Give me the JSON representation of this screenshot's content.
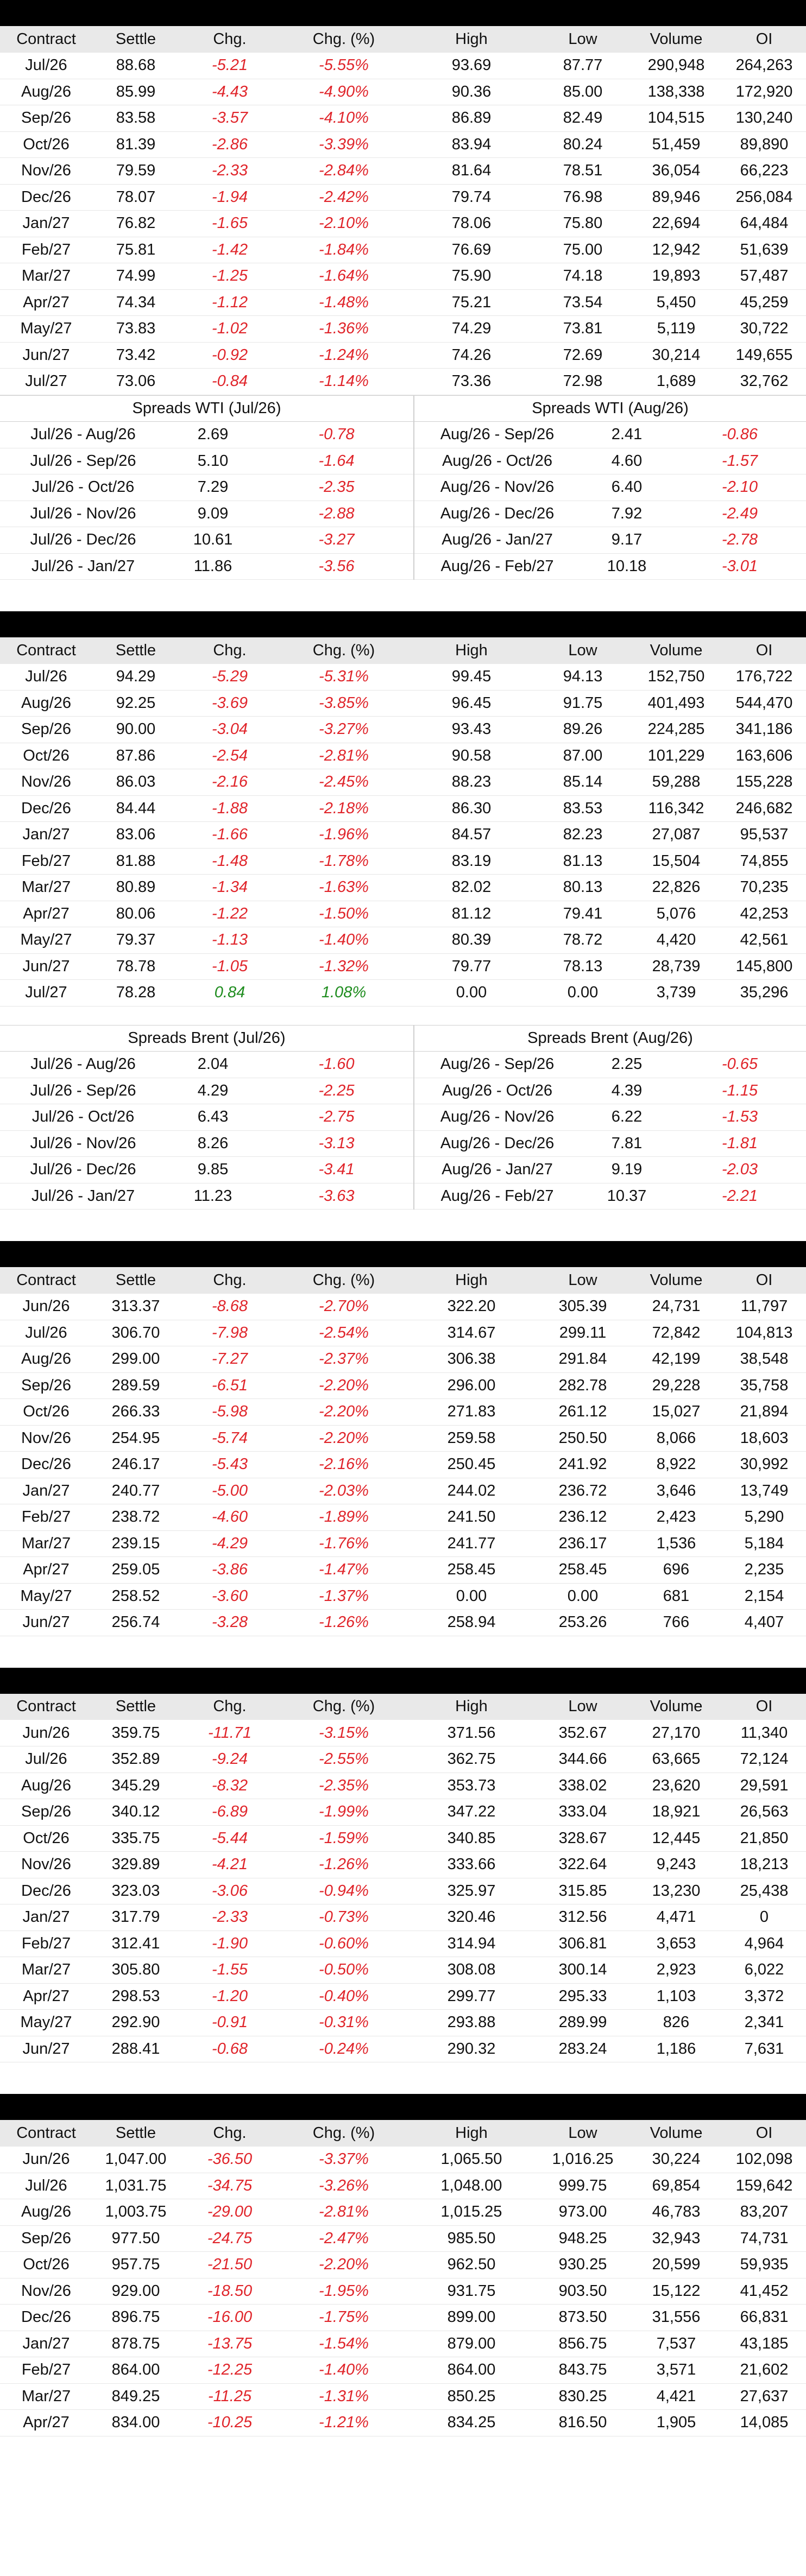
{
  "headers": [
    "Contract",
    "Settle",
    "Chg.",
    "Chg. (%)",
    "High",
    "Low",
    "Volume",
    "OI"
  ],
  "sections": [
    {
      "rows": [
        [
          "Jul/26",
          "88.68",
          "-5.21",
          "-5.55%",
          "93.69",
          "87.77",
          "290,948",
          "264,263"
        ],
        [
          "Aug/26",
          "85.99",
          "-4.43",
          "-4.90%",
          "90.36",
          "85.00",
          "138,338",
          "172,920"
        ],
        [
          "Sep/26",
          "83.58",
          "-3.57",
          "-4.10%",
          "86.89",
          "82.49",
          "104,515",
          "130,240"
        ],
        [
          "Oct/26",
          "81.39",
          "-2.86",
          "-3.39%",
          "83.94",
          "80.24",
          "51,459",
          "89,890"
        ],
        [
          "Nov/26",
          "79.59",
          "-2.33",
          "-2.84%",
          "81.64",
          "78.51",
          "36,054",
          "66,223"
        ],
        [
          "Dec/26",
          "78.07",
          "-1.94",
          "-2.42%",
          "79.74",
          "76.98",
          "89,946",
          "256,084"
        ],
        [
          "Jan/27",
          "76.82",
          "-1.65",
          "-2.10%",
          "78.06",
          "75.80",
          "22,694",
          "64,484"
        ],
        [
          "Feb/27",
          "75.81",
          "-1.42",
          "-1.84%",
          "76.69",
          "75.00",
          "12,942",
          "51,639"
        ],
        [
          "Mar/27",
          "74.99",
          "-1.25",
          "-1.64%",
          "75.90",
          "74.18",
          "19,893",
          "57,487"
        ],
        [
          "Apr/27",
          "74.34",
          "-1.12",
          "-1.48%",
          "75.21",
          "73.54",
          "5,450",
          "45,259"
        ],
        [
          "May/27",
          "73.83",
          "-1.02",
          "-1.36%",
          "74.29",
          "73.81",
          "5,119",
          "30,722"
        ],
        [
          "Jun/27",
          "73.42",
          "-0.92",
          "-1.24%",
          "74.26",
          "72.69",
          "30,214",
          "149,655"
        ],
        [
          "Jul/27",
          "73.06",
          "-0.84",
          "-1.14%",
          "73.36",
          "72.98",
          "1,689",
          "32,762"
        ]
      ],
      "spreads": {
        "left_title": "Spreads WTI (Jul/26)",
        "right_title": "Spreads WTI (Aug/26)",
        "rows": [
          [
            "Jul/26 - Aug/26",
            "2.69",
            "-0.78",
            "Aug/26 - Sep/26",
            "2.41",
            "-0.86"
          ],
          [
            "Jul/26 - Sep/26",
            "5.10",
            "-1.64",
            "Aug/26 - Oct/26",
            "4.60",
            "-1.57"
          ],
          [
            "Jul/26 - Oct/26",
            "7.29",
            "-2.35",
            "Aug/26 - Nov/26",
            "6.40",
            "-2.10"
          ],
          [
            "Jul/26 - Nov/26",
            "9.09",
            "-2.88",
            "Aug/26 - Dec/26",
            "7.92",
            "-2.49"
          ],
          [
            "Jul/26 - Dec/26",
            "10.61",
            "-3.27",
            "Aug/26 - Jan/27",
            "9.17",
            "-2.78"
          ],
          [
            "Jul/26 - Jan/27",
            "11.86",
            "-3.56",
            "Aug/26 - Feb/27",
            "10.18",
            "-3.01"
          ]
        ]
      }
    },
    {
      "rows": [
        [
          "Jul/26",
          "94.29",
          "-5.29",
          "-5.31%",
          "99.45",
          "94.13",
          "152,750",
          "176,722"
        ],
        [
          "Aug/26",
          "92.25",
          "-3.69",
          "-3.85%",
          "96.45",
          "91.75",
          "401,493",
          "544,470"
        ],
        [
          "Sep/26",
          "90.00",
          "-3.04",
          "-3.27%",
          "93.43",
          "89.26",
          "224,285",
          "341,186"
        ],
        [
          "Oct/26",
          "87.86",
          "-2.54",
          "-2.81%",
          "90.58",
          "87.00",
          "101,229",
          "163,606"
        ],
        [
          "Nov/26",
          "86.03",
          "-2.16",
          "-2.45%",
          "88.23",
          "85.14",
          "59,288",
          "155,228"
        ],
        [
          "Dec/26",
          "84.44",
          "-1.88",
          "-2.18%",
          "86.30",
          "83.53",
          "116,342",
          "246,682"
        ],
        [
          "Jan/27",
          "83.06",
          "-1.66",
          "-1.96%",
          "84.57",
          "82.23",
          "27,087",
          "95,537"
        ],
        [
          "Feb/27",
          "81.88",
          "-1.48",
          "-1.78%",
          "83.19",
          "81.13",
          "15,504",
          "74,855"
        ],
        [
          "Mar/27",
          "80.89",
          "-1.34",
          "-1.63%",
          "82.02",
          "80.13",
          "22,826",
          "70,235"
        ],
        [
          "Apr/27",
          "80.06",
          "-1.22",
          "-1.50%",
          "81.12",
          "79.41",
          "5,076",
          "42,253"
        ],
        [
          "May/27",
          "79.37",
          "-1.13",
          "-1.40%",
          "80.39",
          "78.72",
          "4,420",
          "42,561"
        ],
        [
          "Jun/27",
          "78.78",
          "-1.05",
          "-1.32%",
          "79.77",
          "78.13",
          "28,739",
          "145,800"
        ],
        [
          "Jul/27",
          "78.28",
          "0.84",
          "1.08%",
          "0.00",
          "0.00",
          "3,739",
          "35,296"
        ]
      ],
      "spreads": {
        "left_title": "Spreads Brent (Jul/26)",
        "right_title": "Spreads Brent (Aug/26)",
        "rows": [
          [
            "Jul/26 - Aug/26",
            "2.04",
            "-1.60",
            "Aug/26 - Sep/26",
            "2.25",
            "-0.65"
          ],
          [
            "Jul/26 - Sep/26",
            "4.29",
            "-2.25",
            "Aug/26 - Oct/26",
            "4.39",
            "-1.15"
          ],
          [
            "Jul/26 - Oct/26",
            "6.43",
            "-2.75",
            "Aug/26 - Nov/26",
            "6.22",
            "-1.53"
          ],
          [
            "Jul/26 - Nov/26",
            "8.26",
            "-3.13",
            "Aug/26 - Dec/26",
            "7.81",
            "-1.81"
          ],
          [
            "Jul/26 - Dec/26",
            "9.85",
            "-3.41",
            "Aug/26 - Jan/27",
            "9.19",
            "-2.03"
          ],
          [
            "Jul/26 - Jan/27",
            "11.23",
            "-3.63",
            "Aug/26 - Feb/27",
            "10.37",
            "-2.21"
          ]
        ]
      }
    },
    {
      "rows": [
        [
          "Jun/26",
          "313.37",
          "-8.68",
          "-2.70%",
          "322.20",
          "305.39",
          "24,731",
          "11,797"
        ],
        [
          "Jul/26",
          "306.70",
          "-7.98",
          "-2.54%",
          "314.67",
          "299.11",
          "72,842",
          "104,813"
        ],
        [
          "Aug/26",
          "299.00",
          "-7.27",
          "-2.37%",
          "306.38",
          "291.84",
          "42,199",
          "38,548"
        ],
        [
          "Sep/26",
          "289.59",
          "-6.51",
          "-2.20%",
          "296.00",
          "282.78",
          "29,228",
          "35,758"
        ],
        [
          "Oct/26",
          "266.33",
          "-5.98",
          "-2.20%",
          "271.83",
          "261.12",
          "15,027",
          "21,894"
        ],
        [
          "Nov/26",
          "254.95",
          "-5.74",
          "-2.20%",
          "259.58",
          "250.50",
          "8,066",
          "18,603"
        ],
        [
          "Dec/26",
          "246.17",
          "-5.43",
          "-2.16%",
          "250.45",
          "241.92",
          "8,922",
          "30,992"
        ],
        [
          "Jan/27",
          "240.77",
          "-5.00",
          "-2.03%",
          "244.02",
          "236.72",
          "3,646",
          "13,749"
        ],
        [
          "Feb/27",
          "238.72",
          "-4.60",
          "-1.89%",
          "241.50",
          "236.12",
          "2,423",
          "5,290"
        ],
        [
          "Mar/27",
          "239.15",
          "-4.29",
          "-1.76%",
          "241.77",
          "236.17",
          "1,536",
          "5,184"
        ],
        [
          "Apr/27",
          "259.05",
          "-3.86",
          "-1.47%",
          "258.45",
          "258.45",
          "696",
          "2,235"
        ],
        [
          "May/27",
          "258.52",
          "-3.60",
          "-1.37%",
          "0.00",
          "0.00",
          "681",
          "2,154"
        ],
        [
          "Jun/27",
          "256.74",
          "-3.28",
          "-1.26%",
          "258.94",
          "253.26",
          "766",
          "4,407"
        ]
      ]
    },
    {
      "rows": [
        [
          "Jun/26",
          "359.75",
          "-11.71",
          "-3.15%",
          "371.56",
          "352.67",
          "27,170",
          "11,340"
        ],
        [
          "Jul/26",
          "352.89",
          "-9.24",
          "-2.55%",
          "362.75",
          "344.66",
          "63,665",
          "72,124"
        ],
        [
          "Aug/26",
          "345.29",
          "-8.32",
          "-2.35%",
          "353.73",
          "338.02",
          "23,620",
          "29,591"
        ],
        [
          "Sep/26",
          "340.12",
          "-6.89",
          "-1.99%",
          "347.22",
          "333.04",
          "18,921",
          "26,563"
        ],
        [
          "Oct/26",
          "335.75",
          "-5.44",
          "-1.59%",
          "340.85",
          "328.67",
          "12,445",
          "21,850"
        ],
        [
          "Nov/26",
          "329.89",
          "-4.21",
          "-1.26%",
          "333.66",
          "322.64",
          "9,243",
          "18,213"
        ],
        [
          "Dec/26",
          "323.03",
          "-3.06",
          "-0.94%",
          "325.97",
          "315.85",
          "13,230",
          "25,438"
        ],
        [
          "Jan/27",
          "317.79",
          "-2.33",
          "-0.73%",
          "320.46",
          "312.56",
          "4,471",
          "0"
        ],
        [
          "Feb/27",
          "312.41",
          "-1.90",
          "-0.60%",
          "314.94",
          "306.81",
          "3,653",
          "4,964"
        ],
        [
          "Mar/27",
          "305.80",
          "-1.55",
          "-0.50%",
          "308.08",
          "300.14",
          "2,923",
          "6,022"
        ],
        [
          "Apr/27",
          "298.53",
          "-1.20",
          "-0.40%",
          "299.77",
          "295.33",
          "1,103",
          "3,372"
        ],
        [
          "May/27",
          "292.90",
          "-0.91",
          "-0.31%",
          "293.88",
          "289.99",
          "826",
          "2,341"
        ],
        [
          "Jun/27",
          "288.41",
          "-0.68",
          "-0.24%",
          "290.32",
          "283.24",
          "1,186",
          "7,631"
        ]
      ]
    },
    {
      "rows": [
        [
          "Jun/26",
          "1,047.00",
          "-36.50",
          "-3.37%",
          "1,065.50",
          "1,016.25",
          "30,224",
          "102,098"
        ],
        [
          "Jul/26",
          "1,031.75",
          "-34.75",
          "-3.26%",
          "1,048.00",
          "999.75",
          "69,854",
          "159,642"
        ],
        [
          "Aug/26",
          "1,003.75",
          "-29.00",
          "-2.81%",
          "1,015.25",
          "973.00",
          "46,783",
          "83,207"
        ],
        [
          "Sep/26",
          "977.50",
          "-24.75",
          "-2.47%",
          "985.50",
          "948.25",
          "32,943",
          "74,731"
        ],
        [
          "Oct/26",
          "957.75",
          "-21.50",
          "-2.20%",
          "962.50",
          "930.25",
          "20,599",
          "59,935"
        ],
        [
          "Nov/26",
          "929.00",
          "-18.50",
          "-1.95%",
          "931.75",
          "903.50",
          "15,122",
          "41,452"
        ],
        [
          "Dec/26",
          "896.75",
          "-16.00",
          "-1.75%",
          "899.00",
          "873.50",
          "31,556",
          "66,831"
        ],
        [
          "Jan/27",
          "878.75",
          "-13.75",
          "-1.54%",
          "879.00",
          "856.75",
          "7,537",
          "43,185"
        ],
        [
          "Feb/27",
          "864.00",
          "-12.25",
          "-1.40%",
          "864.00",
          "843.75",
          "3,571",
          "21,602"
        ],
        [
          "Mar/27",
          "849.25",
          "-11.25",
          "-1.31%",
          "850.25",
          "830.25",
          "4,421",
          "27,637"
        ],
        [
          "Apr/27",
          "834.00",
          "-10.25",
          "-1.21%",
          "834.25",
          "816.50",
          "1,905",
          "14,085"
        ]
      ]
    }
  ]
}
